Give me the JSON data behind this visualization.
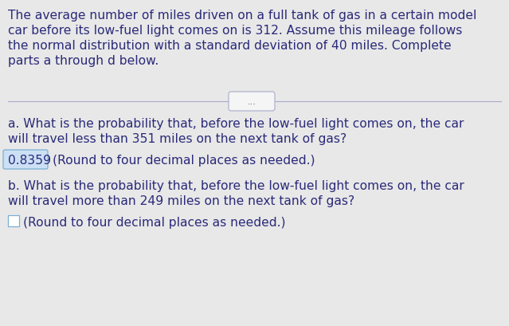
{
  "bg_color": "#e8e8e8",
  "panel_color": "#f5f5f5",
  "text_color": "#2a2a7a",
  "intro_text_line1": "The average number of miles driven on a full tank of gas in a certain model",
  "intro_text_line2": "car before its low-fuel light comes on is 312. Assume this mileage follows",
  "intro_text_line3": "the normal distribution with a standard deviation of 40 miles. Complete",
  "intro_text_line4": "parts a through d below.",
  "divider_dots": "...",
  "question_a_line1": "a. What is the probability that, before the low-fuel light comes on, the car",
  "question_a_line2": "will travel less than 351 miles on the next tank of gas?",
  "answer_a": "0.8359",
  "answer_a_suffix": "(Round to four decimal places as needed.)",
  "answer_a_box_color": "#cce0f5",
  "answer_a_border_color": "#7bafd4",
  "question_b_line1": "b. What is the probability that, before the low-fuel light comes on, the car",
  "question_b_line2": "will travel more than 249 miles on the next tank of gas?",
  "answer_b_suffix": "(Round to four decimal places as needed.)",
  "answer_b_box_color": "#ffffff",
  "answer_b_border_color": "#7bafd4",
  "divider_color": "#aaaacc",
  "dots_border_color": "#aaaacc",
  "dots_bg_color": "#f5f5f5",
  "font_size": 11.2,
  "font_size_small": 10.0
}
